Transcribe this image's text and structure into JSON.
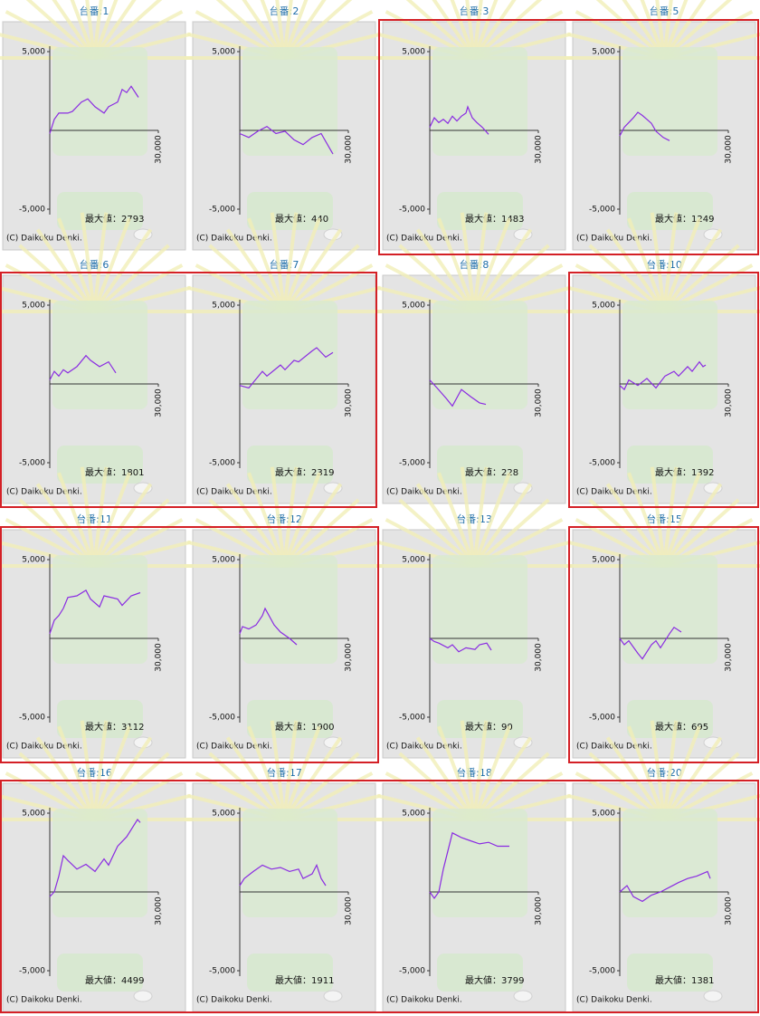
{
  "chart_data": [
    {
      "type": "line",
      "title": "台番:1",
      "x": [
        0,
        1250,
        2500,
        5000,
        6250,
        8750,
        10500,
        12500,
        15000,
        16250,
        18750,
        20000,
        21250,
        22500,
        24500
      ],
      "values": [
        -200,
        700,
        1100,
        1100,
        1200,
        1800,
        2000,
        1500,
        1100,
        1500,
        1800,
        2600,
        2400,
        2800,
        2100
      ],
      "color": "#8a2be2",
      "xlim": [
        0,
        30000
      ],
      "ylim": [
        -5000,
        5000
      ],
      "xticks": [
        {
          "value": 30000,
          "label": "30,000"
        }
      ],
      "yticks": [
        {
          "value": 5000,
          "label": "5,000"
        },
        {
          "value": -5000,
          "label": "-5,000"
        }
      ],
      "max_label": "最大値：2793",
      "copyright": "(C) Daikoku Denki."
    },
    {
      "type": "line",
      "title": "台番:2",
      "x": [
        0,
        2500,
        5000,
        7500,
        10000,
        12500,
        15000,
        17500,
        20000,
        22500,
        25000,
        25750
      ],
      "values": [
        -200,
        -450,
        -50,
        250,
        -200,
        -50,
        -600,
        -900,
        -450,
        -200,
        -1200,
        -1500
      ],
      "color": "#8a2be2",
      "xlim": [
        0,
        30000
      ],
      "ylim": [
        -5000,
        5000
      ],
      "xticks": [
        {
          "value": 30000,
          "label": "30,000"
        }
      ],
      "yticks": [
        {
          "value": 5000,
          "label": "5,000"
        },
        {
          "value": -5000,
          "label": "-5,000"
        }
      ],
      "max_label": "最大値：440",
      "copyright": "(C) Daikoku Denki."
    },
    {
      "type": "line",
      "title": "台番:3",
      "x": [
        0,
        1250,
        2500,
        3750,
        5000,
        6250,
        7500,
        8750,
        10000,
        10500,
        11750,
        13000,
        14500,
        16250
      ],
      "values": [
        200,
        800,
        500,
        700,
        450,
        900,
        600,
        900,
        1100,
        1500,
        800,
        500,
        200,
        -250
      ],
      "color": "#8a2be2",
      "xlim": [
        0,
        30000
      ],
      "ylim": [
        -5000,
        5000
      ],
      "xticks": [
        {
          "value": 30000,
          "label": "30,000"
        }
      ],
      "yticks": [
        {
          "value": 5000,
          "label": "5,000"
        },
        {
          "value": -5000,
          "label": "-5,000"
        }
      ],
      "max_label": "最大値：1483",
      "copyright": "(C) Daikoku Denki."
    },
    {
      "type": "line",
      "title": "台番:5",
      "x": [
        0,
        1250,
        2500,
        3750,
        5000,
        6250,
        7500,
        8750,
        10000,
        12000,
        13750
      ],
      "values": [
        -350,
        200,
        500,
        800,
        1150,
        950,
        700,
        450,
        -50,
        -450,
        -650
      ],
      "color": "#8a2be2",
      "xlim": [
        0,
        30000
      ],
      "ylim": [
        -5000,
        5000
      ],
      "xticks": [
        {
          "value": 30000,
          "label": "30,000"
        }
      ],
      "yticks": [
        {
          "value": 5000,
          "label": "5,000"
        },
        {
          "value": -5000,
          "label": "-5,000"
        }
      ],
      "max_label": "最大値：1249",
      "copyright": "(C) Daikoku Denki."
    },
    {
      "type": "line",
      "title": "台番:6",
      "x": [
        0,
        1250,
        2500,
        3750,
        5000,
        7500,
        10000,
        11250,
        13750,
        16250,
        18250
      ],
      "values": [
        250,
        800,
        500,
        900,
        700,
        1100,
        1800,
        1500,
        1100,
        1400,
        700
      ],
      "color": "#8a2be2",
      "xlim": [
        0,
        30000
      ],
      "ylim": [
        -5000,
        5000
      ],
      "xticks": [
        {
          "value": 30000,
          "label": "30,000"
        }
      ],
      "yticks": [
        {
          "value": 5000,
          "label": "5,000"
        },
        {
          "value": -5000,
          "label": "-5,000"
        }
      ],
      "max_label": "最大値：1801",
      "copyright": "(C) Daikoku Denki."
    },
    {
      "type": "line",
      "title": "台番:7",
      "x": [
        0,
        2500,
        3750,
        6250,
        7500,
        11250,
        12500,
        15000,
        16250,
        20000,
        21250,
        23750,
        25750
      ],
      "values": [
        -100,
        -250,
        100,
        800,
        500,
        1200,
        900,
        1500,
        1400,
        2100,
        2300,
        1700,
        2000
      ],
      "color": "#8a2be2",
      "xlim": [
        0,
        30000
      ],
      "ylim": [
        -5000,
        5000
      ],
      "xticks": [
        {
          "value": 30000,
          "label": "30,000"
        }
      ],
      "yticks": [
        {
          "value": 5000,
          "label": "5,000"
        },
        {
          "value": -5000,
          "label": "-5,000"
        }
      ],
      "max_label": "最大値：2319",
      "copyright": "(C) Daikoku Denki."
    },
    {
      "type": "line",
      "title": "台番:8",
      "x": [
        0,
        2000,
        4500,
        6250,
        8750,
        11250,
        13750,
        15500
      ],
      "values": [
        250,
        -250,
        -900,
        -1400,
        -350,
        -800,
        -1200,
        -1300
      ],
      "color": "#8a2be2",
      "xlim": [
        0,
        30000
      ],
      "ylim": [
        -5000,
        5000
      ],
      "xticks": [
        {
          "value": 30000,
          "label": "30,000"
        }
      ],
      "yticks": [
        {
          "value": 5000,
          "label": "5,000"
        },
        {
          "value": -5000,
          "label": "-5,000"
        }
      ],
      "max_label": "最大値：228",
      "copyright": "(C) Daikoku Denki."
    },
    {
      "type": "line",
      "title": "台番:10",
      "x": [
        0,
        1250,
        2500,
        5000,
        7500,
        10000,
        12500,
        15000,
        16250,
        18750,
        20000,
        22000,
        23000,
        23750
      ],
      "values": [
        -100,
        -350,
        250,
        -100,
        350,
        -250,
        500,
        800,
        500,
        1100,
        800,
        1400,
        1100,
        1200
      ],
      "color": "#8a2be2",
      "xlim": [
        0,
        30000
      ],
      "ylim": [
        -5000,
        5000
      ],
      "xticks": [
        {
          "value": 30000,
          "label": "30,000"
        }
      ],
      "yticks": [
        {
          "value": 5000,
          "label": "5,000"
        },
        {
          "value": -5000,
          "label": "-5,000"
        }
      ],
      "max_label": "最大値：1392",
      "copyright": "(C) Daikoku Denki."
    },
    {
      "type": "line",
      "title": "台番:11",
      "x": [
        0,
        1250,
        2500,
        3750,
        5000,
        7500,
        10000,
        11250,
        13750,
        15000,
        18750,
        20000,
        22500,
        25000
      ],
      "values": [
        300,
        1150,
        1450,
        1900,
        2600,
        2700,
        3050,
        2500,
        2000,
        2700,
        2500,
        2100,
        2700,
        2900
      ],
      "color": "#8a2be2",
      "xlim": [
        0,
        30000
      ],
      "ylim": [
        -5000,
        5000
      ],
      "xticks": [
        {
          "value": 30000,
          "label": "30,000"
        }
      ],
      "yticks": [
        {
          "value": 5000,
          "label": "5,000"
        },
        {
          "value": -5000,
          "label": "-5,000"
        }
      ],
      "max_label": "最大値：3112",
      "copyright": "(C) Daikoku Denki."
    },
    {
      "type": "line",
      "title": "台番:12",
      "x": [
        0,
        750,
        2500,
        4500,
        6250,
        7000,
        9500,
        11250,
        13750,
        15750
      ],
      "values": [
        300,
        750,
        600,
        850,
        1450,
        1900,
        850,
        400,
        0,
        -400
      ],
      "color": "#8a2be2",
      "xlim": [
        0,
        30000
      ],
      "ylim": [
        -5000,
        5000
      ],
      "xticks": [
        {
          "value": 30000,
          "label": "30,000"
        }
      ],
      "yticks": [
        {
          "value": 5000,
          "label": "5,000"
        },
        {
          "value": -5000,
          "label": "-5,000"
        }
      ],
      "max_label": "最大値：1900",
      "copyright": "(C) Daikoku Denki."
    },
    {
      "type": "line",
      "title": "台番:13",
      "x": [
        0,
        1250,
        2500,
        5000,
        6250,
        8000,
        10000,
        12500,
        13750,
        15750,
        17000
      ],
      "values": [
        0,
        -200,
        -300,
        -600,
        -400,
        -850,
        -600,
        -700,
        -400,
        -300,
        -750
      ],
      "color": "#8a2be2",
      "xlim": [
        0,
        30000
      ],
      "ylim": [
        -5000,
        5000
      ],
      "xticks": [
        {
          "value": 30000,
          "label": "30,000"
        }
      ],
      "yticks": [
        {
          "value": 5000,
          "label": "5,000"
        },
        {
          "value": -5000,
          "label": "-5,000"
        }
      ],
      "max_label": "最大値：90",
      "copyright": "(C) Daikoku Denki."
    },
    {
      "type": "line",
      "title": "台番:15",
      "x": [
        0,
        1250,
        2500,
        5000,
        6250,
        8750,
        10000,
        11250,
        13750,
        15000,
        17000
      ],
      "values": [
        0,
        -400,
        -150,
        -950,
        -1300,
        -400,
        -150,
        -600,
        300,
        700,
        400
      ],
      "color": "#8a2be2",
      "xlim": [
        0,
        30000
      ],
      "ylim": [
        -5000,
        5000
      ],
      "xticks": [
        {
          "value": 30000,
          "label": "30,000"
        }
      ],
      "yticks": [
        {
          "value": 5000,
          "label": "5,000"
        },
        {
          "value": -5000,
          "label": "-5,000"
        }
      ],
      "max_label": "最大値：695",
      "copyright": "(C) Daikoku Denki."
    },
    {
      "type": "line",
      "title": "台番:16",
      "x": [
        0,
        1250,
        2500,
        3750,
        5000,
        7500,
        10000,
        12500,
        15000,
        16250,
        18750,
        21250,
        24250,
        25000
      ],
      "values": [
        -300,
        0,
        1000,
        2300,
        2000,
        1450,
        1750,
        1300,
        2100,
        1700,
        2900,
        3500,
        4600,
        4400
      ],
      "color": "#8a2be2",
      "xlim": [
        0,
        30000
      ],
      "ylim": [
        -5000,
        5000
      ],
      "xticks": [
        {
          "value": 30000,
          "label": "30,000"
        }
      ],
      "yticks": [
        {
          "value": 5000,
          "label": "5,000"
        },
        {
          "value": -5000,
          "label": "-5,000"
        }
      ],
      "max_label": "最大値：4499",
      "copyright": "(C) Daikoku Denki."
    },
    {
      "type": "line",
      "title": "台番:17",
      "x": [
        0,
        1250,
        3750,
        6250,
        8750,
        11250,
        13750,
        16250,
        17500,
        20000,
        21250,
        22500,
        23750
      ],
      "values": [
        400,
        850,
        1300,
        1700,
        1450,
        1550,
        1300,
        1450,
        850,
        1150,
        1700,
        850,
        400
      ],
      "color": "#8a2be2",
      "xlim": [
        0,
        30000
      ],
      "ylim": [
        -5000,
        5000
      ],
      "xticks": [
        {
          "value": 30000,
          "label": "30,000"
        }
      ],
      "yticks": [
        {
          "value": 5000,
          "label": "5,000"
        },
        {
          "value": -5000,
          "label": "-5,000"
        }
      ],
      "max_label": "最大値：1911",
      "copyright": "(C) Daikoku Denki."
    },
    {
      "type": "line",
      "title": "台番:18",
      "x": [
        0,
        1250,
        2500,
        3750,
        5000,
        6250,
        8750,
        11250,
        13750,
        16250,
        18750,
        22000
      ],
      "values": [
        0,
        -400,
        0,
        1450,
        2600,
        3750,
        3450,
        3250,
        3050,
        3150,
        2900,
        2900
      ],
      "color": "#8a2be2",
      "xlim": [
        0,
        30000
      ],
      "ylim": [
        -5000,
        5000
      ],
      "xticks": [
        {
          "value": 30000,
          "label": "30,000"
        }
      ],
      "yticks": [
        {
          "value": 5000,
          "label": "5,000"
        },
        {
          "value": -5000,
          "label": "-5,000"
        }
      ],
      "max_label": "最大値：3799",
      "copyright": "(C) Daikoku Denki."
    },
    {
      "type": "line",
      "title": "台番:20",
      "x": [
        0,
        2000,
        3750,
        6250,
        8750,
        11250,
        13750,
        16250,
        18750,
        21250,
        24250,
        25000
      ],
      "values": [
        0,
        400,
        -300,
        -600,
        -200,
        0,
        300,
        600,
        850,
        1000,
        1300,
        850
      ],
      "color": "#8a2be2",
      "xlim": [
        0,
        30000
      ],
      "ylim": [
        -5000,
        5000
      ],
      "xticks": [
        {
          "value": 30000,
          "label": "30,000"
        }
      ],
      "yticks": [
        {
          "value": 5000,
          "label": "5,000"
        },
        {
          "value": -5000,
          "label": "-5,000"
        }
      ],
      "max_label": "最大値：1381",
      "copyright": "(C) Daikoku Denki."
    }
  ]
}
